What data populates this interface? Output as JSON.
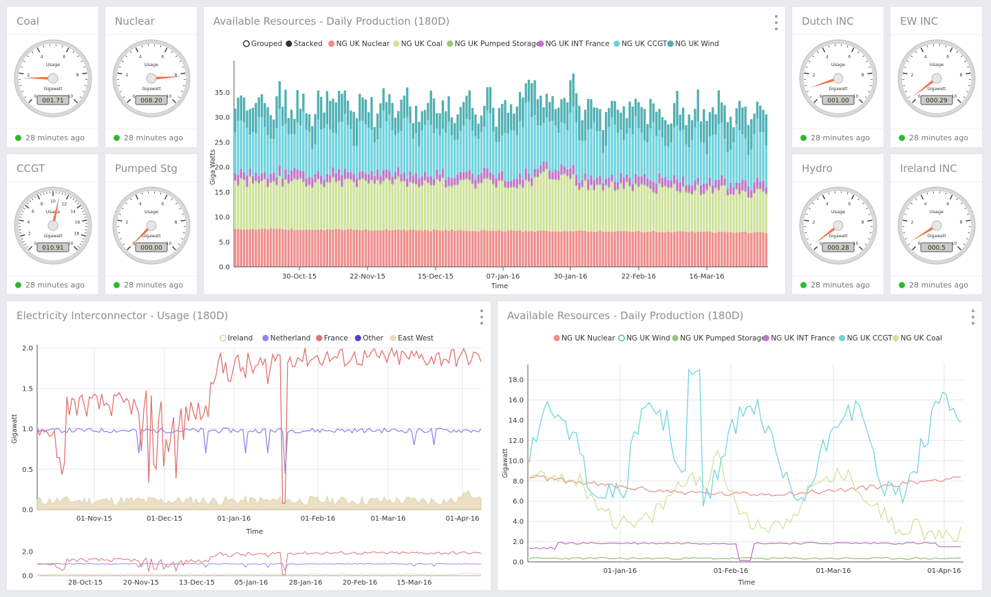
{
  "gauges": [
    {
      "title": "Coal",
      "value": 1.71,
      "readout": "001.71",
      "max": 10,
      "ticks": [
        "0",
        "2",
        "4",
        "6",
        "8",
        "10"
      ],
      "status": "28 minutes ago"
    },
    {
      "title": "Nuclear",
      "value": 8.2,
      "readout": "008.20",
      "max": 10,
      "ticks": [
        "0",
        "2",
        "4",
        "6",
        "8",
        "10"
      ],
      "status": "28 minutes ago"
    },
    {
      "title": "CCGT",
      "value": 10.9,
      "readout": "010.91",
      "max": 20,
      "ticks": [
        "0",
        "2",
        "4",
        "6",
        "8",
        "10",
        "12",
        "14",
        "16",
        "18",
        "20"
      ],
      "status": "28 minutes ago"
    },
    {
      "title": "Pumped Stg",
      "value": 0,
      "readout": "000.00",
      "max": 10,
      "ticks": [
        "0",
        "2",
        "4",
        "6",
        "8",
        "10"
      ],
      "status": "28 minutes ago"
    },
    {
      "title": "Dutch INC",
      "value": 1.0,
      "readout": "001.00",
      "max": 10,
      "ticks": [
        "0",
        "2",
        "4",
        "6",
        "8",
        "10"
      ],
      "status": "28 minutes ago"
    },
    {
      "title": "EW INC",
      "value": 0.29,
      "readout": "000.29",
      "max": 10,
      "ticks": [
        "0",
        "2",
        "4",
        "6",
        "8",
        "10"
      ],
      "status": "28 minutes ago"
    },
    {
      "title": "Hydro",
      "value": 0.28,
      "readout": "000.28",
      "max": 10,
      "ticks": [
        "0",
        "2",
        "4",
        "6",
        "8",
        "10"
      ],
      "status": "28 minutes ago"
    },
    {
      "title": "Ireland INC",
      "value": 0.5,
      "readout": "000.5",
      "max": 10,
      "ticks": [
        "0",
        "2",
        "4",
        "6",
        "8",
        "10"
      ],
      "status": "28 minutes ago"
    }
  ],
  "gauge_labels": {
    "usage": "Usage",
    "unit": "Gigawatt"
  },
  "colors": {
    "nuclear": "#ef8e8c",
    "coal": "#cfe29a",
    "pumped": "#9bc47a",
    "france_int": "#c075c8",
    "ccgt": "#6fd3de",
    "wind": "#4fb0b3",
    "ireland": "#b6e39a",
    "netherland": "#8f86f0",
    "france": "#e0716f",
    "other": "#5a3fc0",
    "eastwest": "#e9dcbe",
    "needle": "#f07048",
    "status_ok": "#2eb82e"
  },
  "chart_data": [
    {
      "type": "bar",
      "title": "Available Resources - Daily Production (180D)",
      "modes": [
        "Grouped",
        "Stacked"
      ],
      "stacked": true,
      "ylabel": "Giga Watts",
      "xlabel": "Time",
      "ylim": [
        0,
        40
      ],
      "yticks": [
        "0.0",
        "5.0",
        "10.0",
        "15.0",
        "20.0",
        "25.0",
        "30.0",
        "35.0"
      ],
      "xticks": [
        "30-Oct-15",
        "22-Nov-15",
        "15-Dec-15",
        "07-Jan-16",
        "30-Jan-16",
        "22-Feb-16",
        "16-Mar-16"
      ],
      "series": [
        {
          "name": "NG UK Nuclear",
          "key": "nuclear",
          "base": 7.8,
          "amp": 0.5
        },
        {
          "name": "NG UK Coal",
          "key": "coal",
          "base": 10.0,
          "amp": 1.8
        },
        {
          "name": "NG UK Pumped Storage",
          "key": "pumped",
          "base": 0.3,
          "amp": 0.1
        },
        {
          "name": "NG UK INT France",
          "key": "france_int",
          "base": 1.6,
          "amp": 0.4
        },
        {
          "name": "NG UK CCGT",
          "key": "ccgt",
          "base": 9.5,
          "amp": 3.0
        },
        {
          "name": "NG UK Wind",
          "key": "wind",
          "base": 4.0,
          "amp": 2.5
        }
      ],
      "days": 180
    },
    {
      "type": "line",
      "title": "Electricity Interconnector - Usage (180D)",
      "ylabel": "Gigawatt",
      "xlabel": "Time",
      "ylim": [
        0,
        2
      ],
      "yticks": [
        "0.0",
        "0.5",
        "1.0",
        "1.5",
        "2.0"
      ],
      "xticks": [
        "01-Nov-15",
        "01-Dec-15",
        "01-Jan-16",
        "01-Feb-16",
        "01-Mar-16",
        "01-Apr-16"
      ],
      "nav_yticks": [
        "0.0",
        "2.0"
      ],
      "nav_xticks": [
        "28-Oct-15",
        "20-Nov-15",
        "13-Dec-15",
        "05-Jan-16",
        "28-Jan-16",
        "20-Feb-16",
        "15-Mar-16"
      ],
      "series": [
        {
          "name": "Ireland",
          "key": "ireland",
          "hollow": true
        },
        {
          "name": "Netherland",
          "key": "netherland"
        },
        {
          "name": "France",
          "key": "france"
        },
        {
          "name": "Other",
          "key": "other"
        },
        {
          "name": "East West",
          "key": "eastwest"
        }
      ]
    },
    {
      "type": "line",
      "title": "Available Resources - Daily Production (180D)",
      "ylabel": "Gigawatt",
      "xlabel": "Time",
      "ylim": [
        0,
        19.5
      ],
      "yticks": [
        "0.0",
        "2.0",
        "4.0",
        "6.0",
        "8.0",
        "10.0",
        "12.0",
        "14.0",
        "16.0",
        "18.0"
      ],
      "xticks": [
        "01-Jan-16",
        "01-Feb-16",
        "01-Mar-16",
        "01-Apr-16"
      ],
      "series": [
        {
          "name": "NG UK Nuclear",
          "key": "nuclear"
        },
        {
          "name": "NG UK Wind",
          "key": "wind",
          "hollow": true
        },
        {
          "name": "NG UK Pumped Storage",
          "key": "pumped"
        },
        {
          "name": "NG UK INT France",
          "key": "france_int"
        },
        {
          "name": "NG UK CCGT",
          "key": "ccgt"
        },
        {
          "name": "NG UK Coal",
          "key": "coal"
        }
      ]
    }
  ]
}
